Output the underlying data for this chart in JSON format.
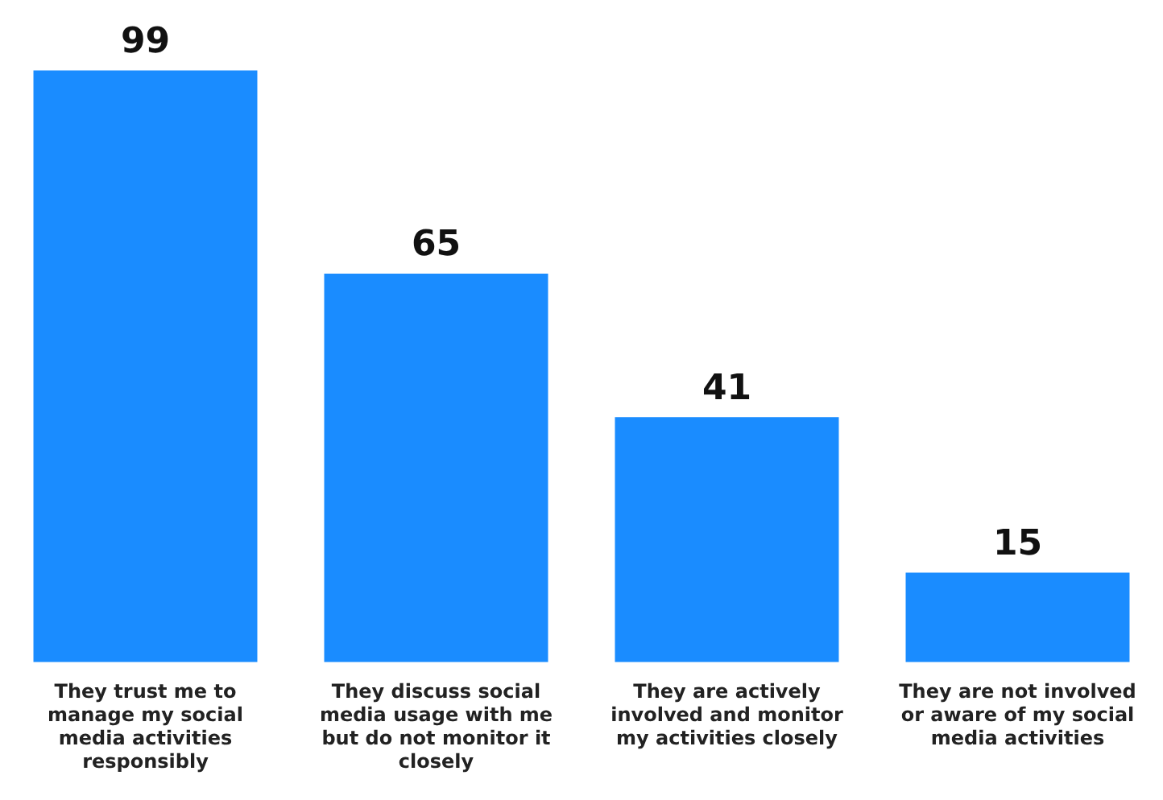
{
  "chart_data": {
    "type": "bar",
    "categories": [
      "They trust me to manage my social media activities responsibly",
      "They discuss social media usage with me but do not monitor it closely",
      "They are actively involved and monitor my activities closely",
      "They are not involved or aware of my social media activities"
    ],
    "values": [
      99,
      65,
      41,
      15
    ],
    "color": "#1a8cff",
    "data_labels": true,
    "grid": false,
    "legend": false
  }
}
